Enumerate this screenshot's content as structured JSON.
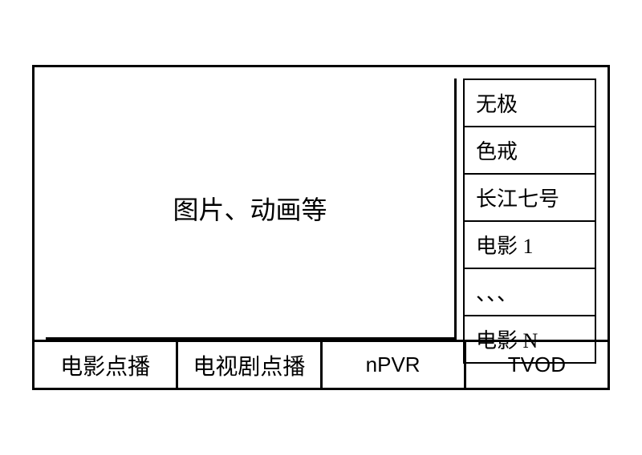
{
  "preview": {
    "label": "图片、动画等"
  },
  "movies": [
    {
      "label": "无极"
    },
    {
      "label": "色戒"
    },
    {
      "label": "长江七号"
    },
    {
      "label": "电影 1"
    },
    {
      "label": "、、、"
    },
    {
      "label": "电影 N"
    }
  ],
  "tabs": [
    {
      "label": "电影点播",
      "sans": false
    },
    {
      "label": "电视剧点播",
      "sans": false
    },
    {
      "label": "nPVR",
      "sans": true
    },
    {
      "label": "TVOD",
      "sans": true
    }
  ],
  "styling": {
    "border_color": "#000000",
    "background_color": "#ffffff",
    "font_family_main": "KaiTi",
    "font_family_sans": "Arial",
    "preview_fontsize": 32,
    "movie_item_fontsize": 26,
    "tab_fontsize": 28
  }
}
